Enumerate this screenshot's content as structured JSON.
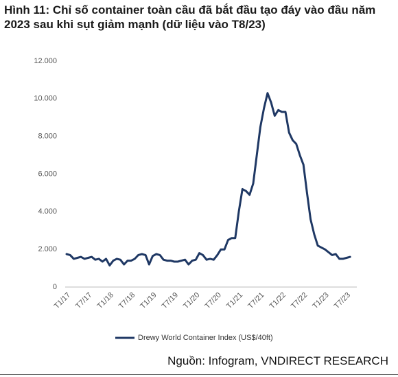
{
  "chart_data": {
    "type": "line",
    "title": "Hình 11: Chỉ số container toàn cầu đã bắt đầu tạo đáy vào đầu năm 2023 sau khi sụt giảm mạnh (dữ liệu vào T8/23)",
    "source": "Nguồn: Infogram, VNDIRECT RESEARCH",
    "categories": [
      "T1/17",
      null,
      null,
      null,
      null,
      null,
      "T7/17",
      null,
      null,
      null,
      null,
      null,
      "T1/18",
      null,
      null,
      null,
      null,
      null,
      "T7/18",
      null,
      null,
      null,
      null,
      null,
      "T1/19",
      null,
      null,
      null,
      null,
      null,
      "T7/19",
      null,
      null,
      null,
      null,
      null,
      "T1/20",
      null,
      null,
      null,
      null,
      null,
      "T7/20",
      null,
      null,
      null,
      null,
      null,
      "T1/21",
      null,
      null,
      null,
      null,
      null,
      "T7/21",
      null,
      null,
      null,
      null,
      null,
      "T1/22",
      null,
      null,
      null,
      null,
      null,
      "T7/22",
      null,
      null,
      null,
      null,
      null,
      "T1/23",
      null,
      null,
      null,
      null,
      null,
      "T7/23",
      null
    ],
    "series": [
      {
        "name": "Drewy World Container Index (US$/40ft)",
        "color": "#1f3864",
        "values": [
          1750,
          1700,
          1500,
          1550,
          1600,
          1500,
          1550,
          1600,
          1450,
          1500,
          1350,
          1500,
          1150,
          1400,
          1500,
          1450,
          1200,
          1400,
          1400,
          1500,
          1700,
          1750,
          1700,
          1200,
          1650,
          1750,
          1700,
          1450,
          1400,
          1400,
          1350,
          1350,
          1400,
          1450,
          1200,
          1400,
          1450,
          1800,
          1700,
          1450,
          1500,
          1450,
          1700,
          2000,
          2000,
          2500,
          2600,
          2600,
          4000,
          5200,
          5100,
          4900,
          5500,
          7000,
          8500,
          9500,
          10300,
          9800,
          9100,
          9400,
          9300,
          9300,
          8200,
          7800,
          7600,
          7000,
          6500,
          5000,
          3600,
          2800,
          2200,
          2100,
          2000,
          1850,
          1700,
          1750,
          1500,
          1500,
          1550,
          1600
        ]
      }
    ],
    "ylim": [
      0,
      12000
    ],
    "yticks": [
      0,
      {
        "value": 2000,
        "label": "2.000"
      },
      {
        "value": 4000,
        "label": "4.000"
      },
      {
        "value": 6000,
        "label": "6.000"
      },
      {
        "value": 8000,
        "label": "8.000"
      },
      {
        "value": 10000,
        "label": "10.000"
      },
      {
        "value": 12000,
        "label": "12.000"
      }
    ],
    "grid": false,
    "legend": "bottom"
  }
}
